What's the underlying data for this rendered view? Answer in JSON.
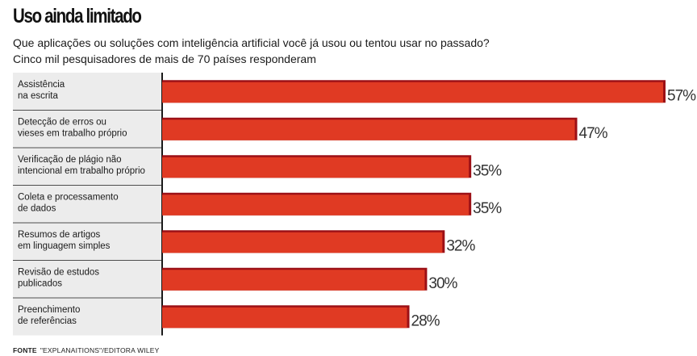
{
  "header": {
    "title": "Uso ainda limitado",
    "subtitle_line1": "Que aplicações ou soluções com inteligência artificial você já usou ou tentou usar no passado?",
    "subtitle_line2": "Cinco mil pesquisadores de mais de 70 países responderam"
  },
  "footer": {
    "source_label": "FONTE",
    "source_text": "\"EXPLANAITIONS\"/EDITORA WILEY"
  },
  "chart_data": {
    "type": "bar",
    "orientation": "horizontal",
    "categories": [
      [
        "Assistência",
        "na escrita"
      ],
      [
        "Detecção de erros ou",
        "vieses em trabalho próprio"
      ],
      [
        "Verificação de plágio não",
        "intencional em trabalho próprio"
      ],
      [
        "Coleta e processamento",
        "de dados"
      ],
      [
        "Resumos de artigos",
        "em linguagem simples"
      ],
      [
        "Revisão de estudos",
        "publicados"
      ],
      [
        "Preenchimento",
        "de referências"
      ]
    ],
    "values": [
      57,
      47,
      35,
      35,
      32,
      30,
      28
    ],
    "value_labels": [
      "57%",
      "47%",
      "35%",
      "35%",
      "32%",
      "30%",
      "28%"
    ],
    "xlim": [
      0,
      57
    ],
    "grid": false,
    "colors": {
      "bar": "#e03a23",
      "bar_shadow": "#9c1016"
    }
  }
}
